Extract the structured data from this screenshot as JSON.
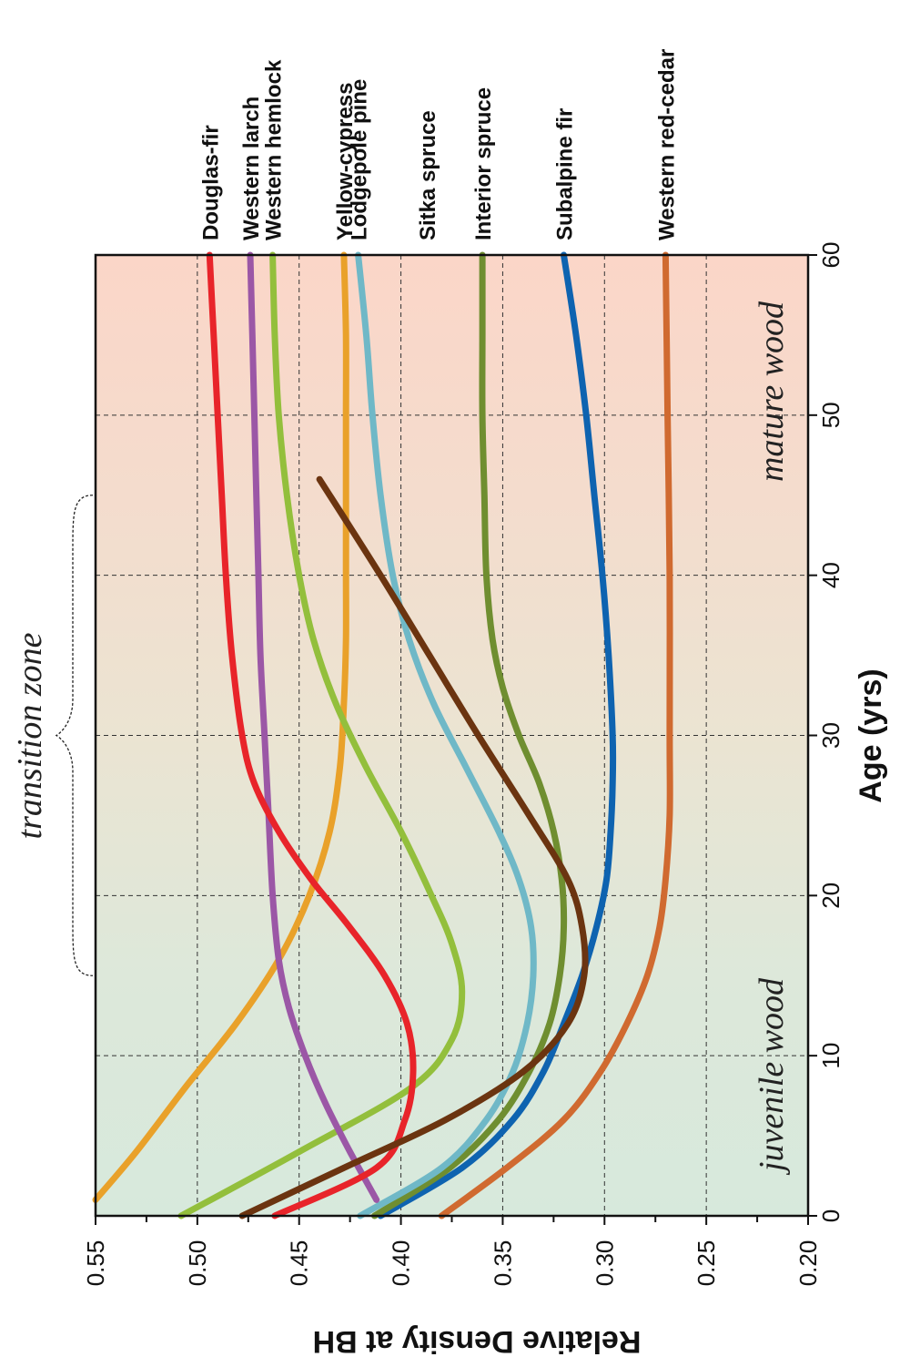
{
  "chart_data": {
    "type": "line",
    "xlabel": "Age (yrs)",
    "ylabel": "Relative Density at BH",
    "xlim": [
      0,
      60
    ],
    "ylim": [
      0.2,
      0.55
    ],
    "x_ticks": [
      "0",
      "10",
      "20",
      "30",
      "40",
      "50",
      "60"
    ],
    "y_ticks": [
      "0.55",
      "0.50",
      "0.45",
      "0.40",
      "0.35",
      "0.30",
      "0.25",
      "0.20"
    ],
    "grid": true,
    "annotations": {
      "juvenile": "juvenile wood",
      "mature": "mature wood",
      "transition": "transition zone"
    },
    "zones": {
      "juvenile": {
        "from": 0,
        "to": 15,
        "color": "#d7e9dc"
      },
      "transition": {
        "from": 15,
        "to": 45
      },
      "mature": {
        "from": 45,
        "to": 60,
        "color": "#fbd6c8"
      },
      "transition_brace_x": [
        15,
        45
      ]
    },
    "series": [
      {
        "name": "Douglas-fir",
        "color": "#e8242a",
        "x": [
          0,
          3,
          6,
          9,
          12,
          15,
          18,
          21,
          24,
          27,
          30,
          35,
          40,
          45,
          50,
          55,
          60
        ],
        "y": [
          0.462,
          0.412,
          0.398,
          0.394,
          0.397,
          0.408,
          0.425,
          0.444,
          0.46,
          0.472,
          0.478,
          0.483,
          0.486,
          0.488,
          0.49,
          0.492,
          0.494
        ]
      },
      {
        "name": "Western larch",
        "color": "#9b57a6",
        "x": [
          1,
          4,
          7,
          10,
          13,
          16,
          20,
          25,
          30,
          35,
          40,
          45,
          50,
          55,
          60
        ],
        "y": [
          0.412,
          0.425,
          0.437,
          0.447,
          0.455,
          0.46,
          0.463,
          0.465,
          0.467,
          0.469,
          0.47,
          0.471,
          0.472,
          0.473,
          0.474
        ]
      },
      {
        "name": "Western hemlock",
        "color": "#93bf3c",
        "x": [
          0,
          4,
          8,
          11,
          14,
          17,
          20,
          24,
          28,
          32,
          36,
          40,
          45,
          50,
          55,
          60
        ],
        "y": [
          0.508,
          0.45,
          0.395,
          0.375,
          0.37,
          0.375,
          0.385,
          0.4,
          0.417,
          0.432,
          0.443,
          0.45,
          0.456,
          0.46,
          0.462,
          0.463
        ]
      },
      {
        "name": "Yellow-cypress",
        "color": "#e9a12a",
        "x": [
          1,
          4,
          8,
          12,
          16,
          20,
          24,
          28,
          32,
          36,
          40,
          45,
          50,
          55,
          60
        ],
        "y": [
          0.55,
          0.53,
          0.506,
          0.481,
          0.46,
          0.445,
          0.435,
          0.43,
          0.428,
          0.427,
          0.427,
          0.427,
          0.427,
          0.427,
          0.428
        ]
      },
      {
        "name": "Lodgepole pine",
        "color": "#6fb8c7",
        "x": [
          0,
          3,
          6,
          9,
          12,
          15,
          18,
          21,
          24,
          28,
          32,
          36,
          40,
          45,
          50,
          55,
          60
        ],
        "y": [
          0.42,
          0.38,
          0.358,
          0.345,
          0.338,
          0.335,
          0.336,
          0.342,
          0.352,
          0.368,
          0.384,
          0.396,
          0.404,
          0.41,
          0.414,
          0.417,
          0.421
        ]
      },
      {
        "name": "Sitka spruce",
        "color": "#6b3410",
        "x": [
          0,
          3,
          6,
          9,
          12,
          15,
          18,
          21,
          25,
          30,
          35,
          40,
          46
        ],
        "y": [
          0.478,
          0.428,
          0.378,
          0.34,
          0.318,
          0.31,
          0.311,
          0.318,
          0.337,
          0.362,
          0.386,
          0.41,
          0.44
        ]
      },
      {
        "name": "Interior spruce",
        "color": "#6f8e30",
        "x": [
          0,
          3,
          6,
          9,
          12,
          15,
          18,
          21,
          24,
          27,
          30,
          33,
          36,
          40,
          45,
          50,
          55,
          60
        ],
        "y": [
          0.413,
          0.376,
          0.352,
          0.337,
          0.327,
          0.322,
          0.32,
          0.321,
          0.325,
          0.332,
          0.342,
          0.35,
          0.355,
          0.358,
          0.359,
          0.36,
          0.36,
          0.36
        ]
      },
      {
        "name": "Subalpine fir",
        "color": "#0e63b0",
        "x": [
          0,
          3,
          6,
          9,
          12,
          15,
          18,
          21,
          24,
          27,
          30,
          35,
          40,
          45,
          50,
          55,
          60
        ],
        "y": [
          0.41,
          0.37,
          0.345,
          0.33,
          0.32,
          0.311,
          0.304,
          0.299,
          0.297,
          0.296,
          0.296,
          0.298,
          0.301,
          0.305,
          0.309,
          0.314,
          0.32
        ]
      },
      {
        "name": "Western red-cedar",
        "color": "#d06a30",
        "x": [
          0,
          3,
          6,
          9,
          12,
          15,
          18,
          21,
          25,
          30,
          40,
          50,
          60
        ],
        "y": [
          0.38,
          0.348,
          0.32,
          0.302,
          0.289,
          0.279,
          0.273,
          0.27,
          0.268,
          0.268,
          0.268,
          0.269,
          0.27
        ]
      }
    ]
  }
}
